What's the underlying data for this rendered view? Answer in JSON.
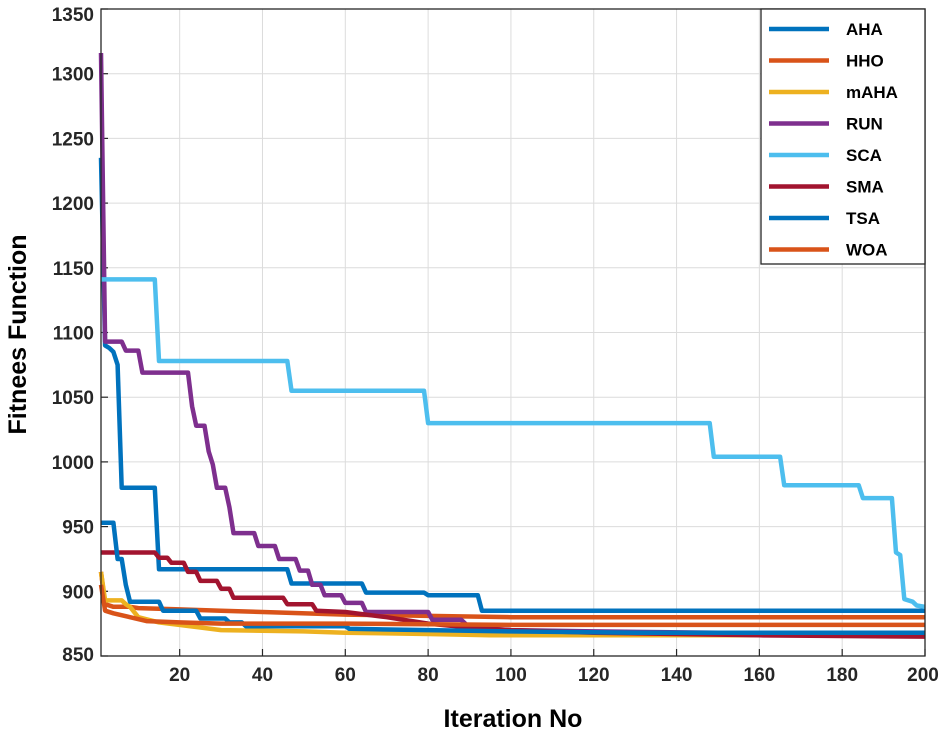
{
  "chart_data": {
    "type": "line",
    "title": "",
    "xlabel": "Iteration No",
    "ylabel": "Fitnees Function",
    "xlim": [
      1,
      200
    ],
    "ylim": [
      850,
      1350
    ],
    "xticks": [
      20,
      40,
      60,
      80,
      100,
      120,
      140,
      160,
      180,
      200
    ],
    "yticks": [
      850,
      900,
      950,
      1000,
      1050,
      1100,
      1150,
      1200,
      1250,
      1300,
      1350
    ],
    "grid": true,
    "legend_position": "top-right",
    "series": [
      {
        "name": "AHA",
        "color": "#0072BD",
        "points": [
          [
            1,
            1235
          ],
          [
            2,
            1090
          ],
          [
            3,
            1088
          ],
          [
            4,
            1085
          ],
          [
            5,
            1075
          ],
          [
            6,
            980
          ],
          [
            14,
            980
          ],
          [
            15,
            917
          ],
          [
            46,
            917
          ],
          [
            47,
            906
          ],
          [
            64,
            906
          ],
          [
            65,
            899
          ],
          [
            79,
            899
          ],
          [
            80,
            897
          ],
          [
            92,
            897
          ],
          [
            93,
            885
          ],
          [
            200,
            885
          ]
        ]
      },
      {
        "name": "HHO",
        "color": "#D95319",
        "points": [
          [
            1,
            915
          ],
          [
            2,
            890
          ],
          [
            4,
            888
          ],
          [
            8,
            888
          ],
          [
            10,
            887
          ],
          [
            20,
            886
          ],
          [
            30,
            885
          ],
          [
            40,
            884
          ],
          [
            60,
            882
          ],
          [
            80,
            881
          ],
          [
            100,
            880
          ],
          [
            150,
            880
          ],
          [
            200,
            880
          ]
        ]
      },
      {
        "name": "mAHA",
        "color": "#EDB120",
        "points": [
          [
            1,
            915
          ],
          [
            2,
            893
          ],
          [
            6,
            893
          ],
          [
            7,
            890
          ],
          [
            8,
            888
          ],
          [
            10,
            880
          ],
          [
            15,
            876
          ],
          [
            25,
            872
          ],
          [
            30,
            870
          ],
          [
            50,
            869
          ],
          [
            60,
            868
          ],
          [
            80,
            867
          ],
          [
            95,
            866
          ],
          [
            200,
            866
          ]
        ]
      },
      {
        "name": "RUN",
        "color": "#7E2F8E",
        "points": [
          [
            1,
            1316
          ],
          [
            2,
            1093
          ],
          [
            6,
            1093
          ],
          [
            7,
            1086
          ],
          [
            10,
            1086
          ],
          [
            11,
            1069
          ],
          [
            22,
            1069
          ],
          [
            23,
            1043
          ],
          [
            24,
            1028
          ],
          [
            26,
            1028
          ],
          [
            27,
            1008
          ],
          [
            28,
            998
          ],
          [
            29,
            980
          ],
          [
            31,
            980
          ],
          [
            32,
            965
          ],
          [
            33,
            945
          ],
          [
            38,
            945
          ],
          [
            39,
            935
          ],
          [
            43,
            935
          ],
          [
            44,
            925
          ],
          [
            48,
            925
          ],
          [
            49,
            916
          ],
          [
            51,
            916
          ],
          [
            52,
            905
          ],
          [
            54,
            905
          ],
          [
            55,
            897
          ],
          [
            59,
            897
          ],
          [
            60,
            891
          ],
          [
            64,
            891
          ],
          [
            65,
            884
          ],
          [
            80,
            884
          ],
          [
            81,
            878
          ],
          [
            88,
            878
          ],
          [
            90,
            872
          ],
          [
            100,
            870
          ],
          [
            120,
            869
          ],
          [
            150,
            868
          ],
          [
            200,
            868
          ]
        ]
      },
      {
        "name": "SCA",
        "color": "#4DBEEE",
        "points": [
          [
            1,
            1141
          ],
          [
            14,
            1141
          ],
          [
            15,
            1078
          ],
          [
            46,
            1078
          ],
          [
            47,
            1055
          ],
          [
            79,
            1055
          ],
          [
            80,
            1030
          ],
          [
            148,
            1030
          ],
          [
            149,
            1004
          ],
          [
            165,
            1004
          ],
          [
            166,
            982
          ],
          [
            184,
            982
          ],
          [
            185,
            972
          ],
          [
            192,
            972
          ],
          [
            193,
            930
          ],
          [
            194,
            928
          ],
          [
            195,
            894
          ],
          [
            197,
            892
          ],
          [
            198,
            889
          ],
          [
            200,
            888
          ]
        ]
      },
      {
        "name": "SMA",
        "color": "#A2142F",
        "points": [
          [
            1,
            930
          ],
          [
            14,
            930
          ],
          [
            15,
            926
          ],
          [
            17,
            926
          ],
          [
            18,
            922
          ],
          [
            21,
            922
          ],
          [
            22,
            915
          ],
          [
            24,
            915
          ],
          [
            25,
            908
          ],
          [
            29,
            908
          ],
          [
            30,
            902
          ],
          [
            32,
            902
          ],
          [
            33,
            895
          ],
          [
            45,
            895
          ],
          [
            46,
            890
          ],
          [
            52,
            890
          ],
          [
            53,
            885
          ],
          [
            60,
            884
          ],
          [
            70,
            880
          ],
          [
            80,
            875
          ],
          [
            90,
            872
          ],
          [
            100,
            870
          ],
          [
            120,
            868
          ],
          [
            140,
            867
          ],
          [
            160,
            866
          ],
          [
            200,
            865
          ]
        ]
      },
      {
        "name": "TSA",
        "color": "#0072BD",
        "points": [
          [
            1,
            953
          ],
          [
            4,
            953
          ],
          [
            5,
            925
          ],
          [
            6,
            925
          ],
          [
            7,
            905
          ],
          [
            8,
            892
          ],
          [
            15,
            892
          ],
          [
            16,
            885
          ],
          [
            24,
            885
          ],
          [
            25,
            879
          ],
          [
            31,
            879
          ],
          [
            32,
            876
          ],
          [
            35,
            876
          ],
          [
            36,
            873
          ],
          [
            60,
            873
          ],
          [
            61,
            871
          ],
          [
            80,
            870
          ],
          [
            100,
            869
          ],
          [
            130,
            868
          ],
          [
            200,
            868
          ]
        ]
      },
      {
        "name": "WOA",
        "color": "#D95319",
        "points": [
          [
            1,
            905
          ],
          [
            2,
            885
          ],
          [
            4,
            883
          ],
          [
            8,
            880
          ],
          [
            12,
            877
          ],
          [
            20,
            876
          ],
          [
            30,
            875
          ],
          [
            40,
            875
          ],
          [
            60,
            875
          ],
          [
            100,
            874
          ],
          [
            150,
            874
          ],
          [
            200,
            874
          ]
        ]
      }
    ]
  }
}
